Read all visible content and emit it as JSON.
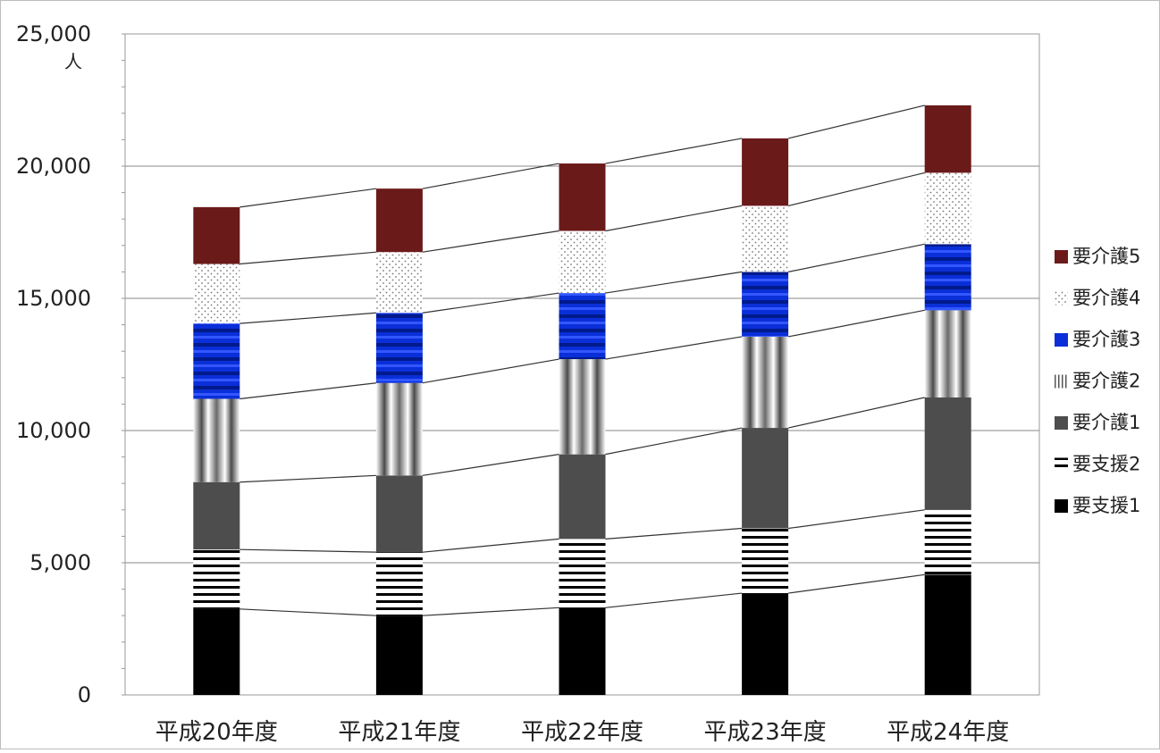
{
  "chart_data": {
    "type": "bar",
    "stacked": true,
    "connector_lines": true,
    "categories": [
      "平成20年度",
      "平成21年度",
      "平成22年度",
      "平成23年度",
      "平成24年度"
    ],
    "y_unit": "人",
    "ylim": [
      0,
      25000
    ],
    "y_ticks": [
      "0",
      "5,000",
      "10,000",
      "15,000",
      "20,000",
      "25,000"
    ],
    "grid": true,
    "legend_position": "right",
    "series": [
      {
        "name": "要支援1",
        "values": [
          3250,
          3000,
          3300,
          3850,
          4550
        ],
        "color": "#000000",
        "pattern": "solid"
      },
      {
        "name": "要支援2",
        "values": [
          2250,
          2400,
          2600,
          2450,
          2450
        ],
        "color": "#000000",
        "pattern": "hstripes"
      },
      {
        "name": "要介護1",
        "values": [
          2550,
          2900,
          3200,
          3800,
          4250
        ],
        "color": "#4d4d4d",
        "pattern": "solid"
      },
      {
        "name": "要介護2",
        "values": [
          3150,
          3500,
          3600,
          3450,
          3300
        ],
        "color": "#9a9a9a",
        "pattern": "vgradient"
      },
      {
        "name": "要介護3",
        "values": [
          2850,
          2650,
          2500,
          2450,
          2500
        ],
        "color": "#0a2fd8",
        "pattern": "hgradient"
      },
      {
        "name": "要介護4",
        "values": [
          2250,
          2300,
          2350,
          2500,
          2700
        ],
        "color": "#888888",
        "pattern": "dots"
      },
      {
        "name": "要介護5",
        "values": [
          2150,
          2400,
          2550,
          2550,
          2550
        ],
        "color": "#6b1a1a",
        "pattern": "solid"
      }
    ]
  }
}
